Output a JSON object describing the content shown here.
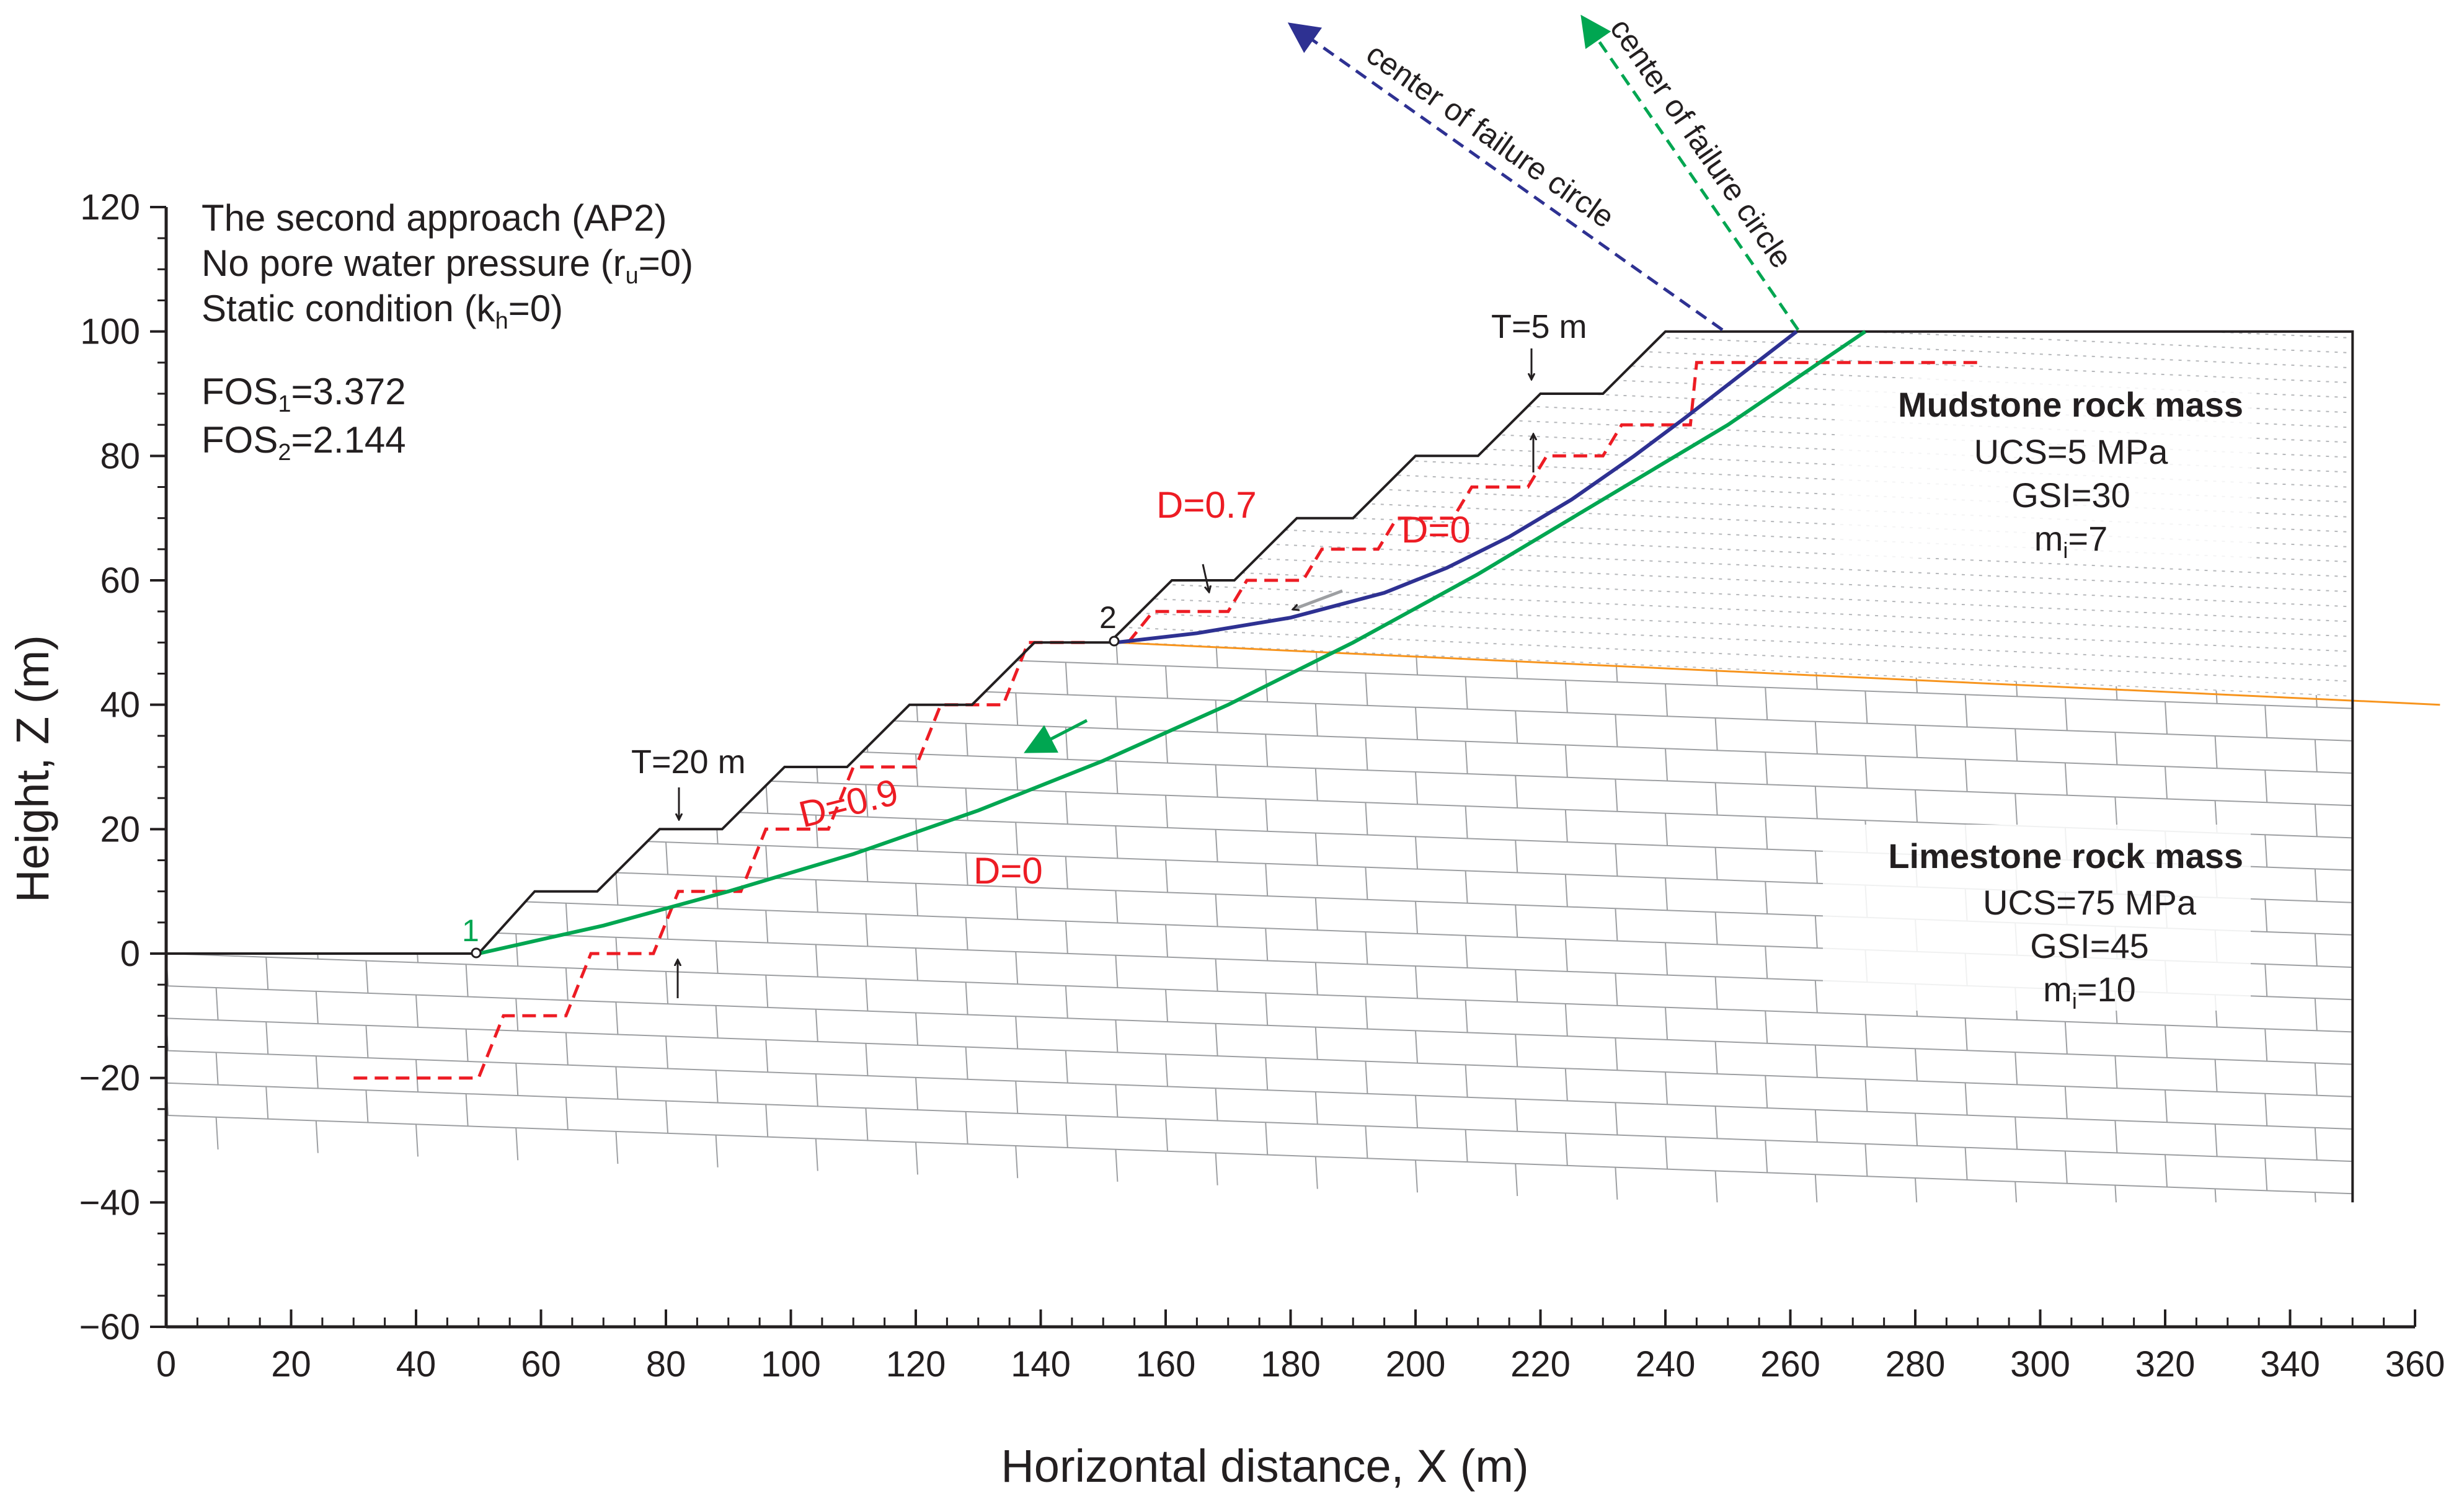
{
  "chart_data": {
    "type": "line",
    "title": "",
    "xlabel": "Horizontal distance, X (m)",
    "ylabel": "Height, Z (m)",
    "xlim": [
      0,
      360
    ],
    "ylim": [
      -60,
      120
    ],
    "x_ticks": [
      0,
      20,
      40,
      60,
      80,
      100,
      120,
      140,
      160,
      180,
      200,
      220,
      240,
      260,
      280,
      300,
      320,
      340,
      360
    ],
    "y_ticks": [
      120,
      100,
      80,
      60,
      40,
      20,
      0,
      -20,
      -40,
      -60
    ],
    "x_tick_labels": [
      "0",
      "20",
      "40",
      "60",
      "80",
      "100",
      "120",
      "140",
      "160",
      "180",
      "200",
      "220",
      "240",
      "260",
      "280",
      "300",
      "320",
      "340",
      "360"
    ],
    "y_tick_labels": [
      "120",
      "100",
      "80",
      "60",
      "40",
      "20",
      "0",
      "−20",
      "−40",
      "−60"
    ],
    "info": {
      "line1": "The second approach (AP2)",
      "line2_main": "No pore water pressure (r",
      "line2_sub": "u",
      "line2_end": "=0)",
      "line3_main": "Static condition (k",
      "line3_sub": "h",
      "line3_end": "=0)"
    },
    "fos": [
      {
        "main": "FOS",
        "sub": "1",
        "value": "=3.372",
        "color": "#00a651"
      },
      {
        "main": "FOS",
        "sub": "2",
        "value": "=2.144",
        "color": "#2e3192"
      }
    ],
    "rock_masses": [
      {
        "name": "Mudstone rock mass",
        "ucs": "UCS=5 MPa",
        "gsi": "GSI=30",
        "mi_main": "m",
        "mi_sub": "i",
        "mi_value": "=7"
      },
      {
        "name": "Limestone rock mass",
        "ucs": "UCS=75 MPa",
        "gsi": "GSI=45",
        "mi_main": "m",
        "mi_sub": "i",
        "mi_value": "=10"
      }
    ],
    "annotations": {
      "d_upper_disturbed": "D=0.7",
      "d_upper_intact": "D=0",
      "d_lower_disturbed": "D=0.9",
      "d_lower_intact": "D=0",
      "bench_upper": "T=5 m",
      "bench_lower": "T=20 m",
      "point1": "1",
      "point2": "2",
      "center_arrow_1": "center of failure circle",
      "center_arrow_2": "center of failure circle"
    },
    "colors": {
      "axis": "#231f20",
      "slip_surface_1": "#00a651",
      "slip_surface_2": "#2e3192",
      "disturbance_boundary": "#ed1c24",
      "interface": "#f7941d",
      "rock_lines": "#9d9fa2"
    },
    "series": [
      {
        "name": "Slope profile",
        "x": [
          0,
          50,
          59,
          69,
          79,
          89,
          99,
          109,
          119,
          129,
          139,
          151,
          161,
          171,
          181,
          190,
          200,
          210,
          220,
          230,
          240,
          350,
          350
        ],
        "y": [
          0,
          0,
          10,
          10,
          20,
          20,
          30,
          30,
          40,
          40,
          50,
          50,
          60,
          60,
          70,
          70,
          80,
          80,
          90,
          90,
          100,
          100,
          -40
        ]
      },
      {
        "name": "Slip surface 1 (FOS1)",
        "x": [
          50,
          70,
          90,
          110,
          130,
          150,
          170,
          190,
          210,
          230,
          250,
          272
        ],
        "y": [
          0,
          4.5,
          10,
          16,
          23,
          31,
          40,
          50,
          61,
          73,
          85,
          100
        ]
      },
      {
        "name": "Slip surface 2 (FOS2)",
        "x": [
          152,
          165,
          180,
          195,
          205,
          215,
          225,
          235,
          243,
          252,
          261
        ],
        "y": [
          50,
          51.5,
          54,
          58,
          62,
          67,
          73,
          80,
          86,
          93,
          100
        ]
      },
      {
        "name": "Disturbed zone boundary (lower slope)",
        "x": [
          30,
          50,
          54,
          64,
          68,
          78,
          82,
          92,
          96,
          106,
          110,
          120,
          124,
          134,
          138,
          148
        ],
        "y": [
          -20,
          -20,
          -10,
          -10,
          0,
          0,
          10,
          10,
          20,
          20,
          30,
          30,
          40,
          40,
          50,
          50
        ]
      },
      {
        "name": "Disturbed zone boundary (upper slope)",
        "x": [
          154,
          158,
          170,
          173,
          182,
          185,
          194,
          197,
          206,
          209,
          218,
          221,
          230,
          233,
          244,
          245,
          290
        ],
        "y": [
          50,
          55,
          55,
          60,
          60,
          65,
          65,
          70,
          70,
          75,
          75,
          80,
          80,
          85,
          85,
          95,
          95
        ]
      },
      {
        "name": "Mudstone-limestone interface",
        "x": [
          152,
          364
        ],
        "y": [
          50,
          40
        ]
      }
    ]
  }
}
